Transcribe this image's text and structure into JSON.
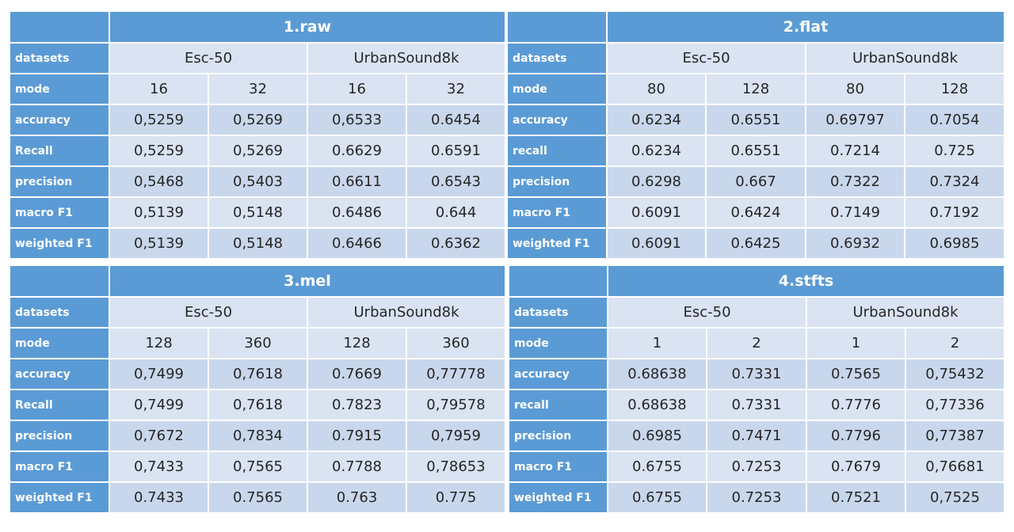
{
  "panels": [
    {
      "title": "1.raw",
      "datasets_label": "datasets",
      "groups": [
        "Esc-50",
        "UrbanSound8k"
      ],
      "rows": [
        {
          "label": "mode",
          "values": [
            "16",
            "32",
            "16",
            "32"
          ]
        },
        {
          "label": "accuracy",
          "values": [
            "0,5259",
            "0,5269",
            "0,6533",
            "0.6454"
          ]
        },
        {
          "label": "Recall",
          "values": [
            "0,5259",
            "0,5269",
            "0.6629",
            "0.6591"
          ]
        },
        {
          "label": "precision",
          "values": [
            "0,5468",
            "0,5403",
            "0.6611",
            "0.6543"
          ]
        },
        {
          "label": "macro F1",
          "values": [
            "0,5139",
            "0,5148",
            "0.6486",
            "0.644"
          ]
        },
        {
          "label": "weighted F1",
          "values": [
            "0,5139",
            "0,5148",
            "0.6466",
            "0.6362"
          ]
        }
      ]
    },
    {
      "title": "2.flat",
      "datasets_label": "datasets",
      "groups": [
        "Esc-50",
        "UrbanSound8k"
      ],
      "rows": [
        {
          "label": "mode",
          "values": [
            "80",
            "128",
            "80",
            "128"
          ]
        },
        {
          "label": "accuracy",
          "values": [
            "0.6234",
            "0.6551",
            "0.69797",
            "0.7054"
          ]
        },
        {
          "label": "recall",
          "values": [
            "0.6234",
            "0.6551",
            "0.7214",
            "0.725"
          ]
        },
        {
          "label": "precision",
          "values": [
            "0.6298",
            "0.667",
            "0.7322",
            "0.7324"
          ]
        },
        {
          "label": "macro F1",
          "values": [
            "0.6091",
            "0.6424",
            "0.7149",
            "0.7192"
          ]
        },
        {
          "label": "weighted F1",
          "values": [
            "0.6091",
            "0.6425",
            "0.6932",
            "0.6985"
          ]
        }
      ]
    },
    {
      "title": "3.mel",
      "datasets_label": "datasets",
      "groups": [
        "Esc-50",
        "UrbanSound8k"
      ],
      "rows": [
        {
          "label": "mode",
          "values": [
            "128",
            "360",
            "128",
            "360"
          ]
        },
        {
          "label": "accuracy",
          "values": [
            "0,7499",
            "0,7618",
            "0.7669",
            "0,77778"
          ]
        },
        {
          "label": "Recall",
          "values": [
            "0,7499",
            "0,7618",
            "0.7823",
            "0,79578"
          ]
        },
        {
          "label": "precision",
          "values": [
            "0,7672",
            "0,7834",
            "0.7915",
            "0,7959"
          ]
        },
        {
          "label": "macro F1",
          "values": [
            "0,7433",
            "0,7565",
            "0.7788",
            "0,78653"
          ]
        },
        {
          "label": "weighted F1",
          "values": [
            "0.7433",
            "0.7565",
            "0.763",
            "0.775"
          ]
        }
      ]
    },
    {
      "title": "4.stfts",
      "datasets_label": "datasets",
      "groups": [
        "Esc-50",
        "UrbanSound8k"
      ],
      "rows": [
        {
          "label": "mode",
          "values": [
            "1",
            "2",
            "1",
            "2"
          ]
        },
        {
          "label": "accuracy",
          "values": [
            "0.68638",
            "0.7331",
            "0.7565",
            "0,75432"
          ]
        },
        {
          "label": "recall",
          "values": [
            "0.68638",
            "0.7331",
            "0.7776",
            "0,77336"
          ]
        },
        {
          "label": "precision",
          "values": [
            "0.6985",
            "0.7471",
            "0.7796",
            "0,77387"
          ]
        },
        {
          "label": "macro F1",
          "values": [
            "0.6755",
            "0.7253",
            "0.7679",
            "0,76681"
          ]
        },
        {
          "label": "weighted F1",
          "values": [
            "0.6755",
            "0.7253",
            "0.7521",
            "0,7525"
          ]
        }
      ]
    }
  ]
}
